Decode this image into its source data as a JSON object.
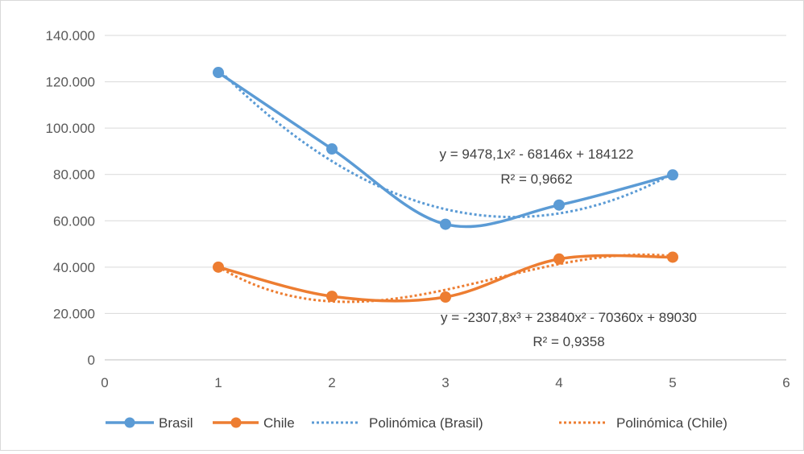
{
  "chart_data": {
    "type": "scatter",
    "x": [
      1,
      2,
      3,
      4,
      5
    ],
    "series": [
      {
        "name": "Brasil",
        "values": [
          124000,
          91000,
          58500,
          66800,
          79800
        ],
        "color": "#5b9bd5",
        "smooth": true,
        "markers": true
      },
      {
        "name": "Chile",
        "values": [
          40000,
          27400,
          27100,
          43500,
          44300
        ],
        "color": "#ed7d31",
        "smooth": true,
        "markers": true
      }
    ],
    "trendlines": [
      {
        "name": "Polinómica (Brasil)",
        "of": "Brasil",
        "coefficients": [
          184122,
          -68146,
          9478.1
        ],
        "color": "#5b9bd5",
        "equation": "y = 9478,1x² - 68146x + 184122",
        "r2": "R² = 0,9662"
      },
      {
        "name": "Polinómica (Chile)",
        "of": "Chile",
        "coefficients": [
          89030,
          -70360,
          23840,
          -2307.8
        ],
        "color": "#ed7d31",
        "equation": "y = -2307,8x³ + 23840x² - 70360x + 89030",
        "r2": "R² = 0,9358"
      }
    ],
    "xlim": [
      0,
      6
    ],
    "ylim": [
      0,
      140000
    ],
    "xticks": [
      "0",
      "1",
      "2",
      "3",
      "4",
      "5",
      "6"
    ],
    "yticks": [
      "0",
      "20.000",
      "40.000",
      "60.000",
      "80.000",
      "100.000",
      "120.000",
      "140.000"
    ],
    "grid": "horizontal",
    "legend": "bottom",
    "title": "",
    "xlabel": "",
    "ylabel": ""
  }
}
